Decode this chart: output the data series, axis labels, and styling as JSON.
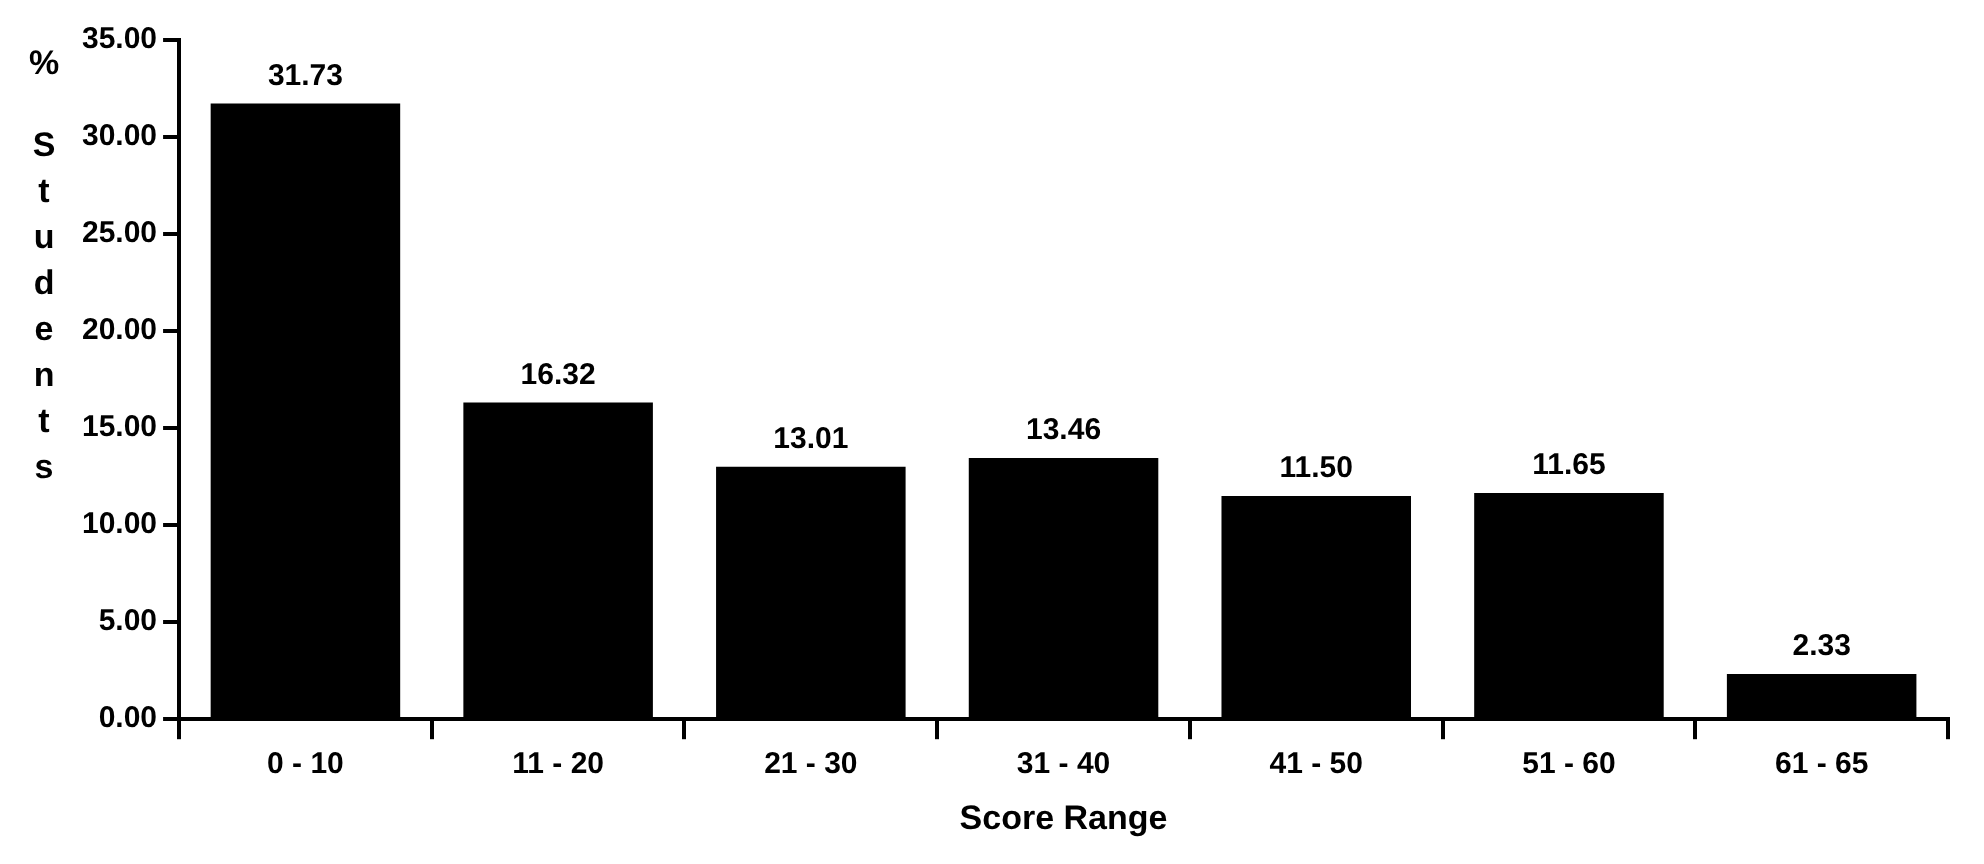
{
  "chart_data": {
    "type": "bar",
    "xlabel": "Score Range",
    "ylabel": "% Students",
    "categories": [
      "0 - 10",
      "11 - 20",
      "21 - 30",
      "31 - 40",
      "41 - 50",
      "51 - 60",
      "61 - 65"
    ],
    "values": [
      31.73,
      16.32,
      13.01,
      13.46,
      11.5,
      11.65,
      2.33
    ],
    "value_labels": [
      "31.73",
      "16.32",
      "13.01",
      "13.46",
      "11.50",
      "11.65",
      "2.33"
    ],
    "color": "#000000",
    "ylim": [
      0,
      35
    ],
    "yticks": [
      {
        "value": 0,
        "label": "0.00"
      },
      {
        "value": 5,
        "label": "5.00"
      },
      {
        "value": 10,
        "label": "10.00"
      },
      {
        "value": 15,
        "label": "15.00"
      },
      {
        "value": 20,
        "label": "20.00"
      },
      {
        "value": 25,
        "label": "25.00"
      },
      {
        "value": 30,
        "label": "30.00"
      },
      {
        "value": 35,
        "label": "35.00"
      }
    ],
    "grid": false,
    "legend": false
  }
}
